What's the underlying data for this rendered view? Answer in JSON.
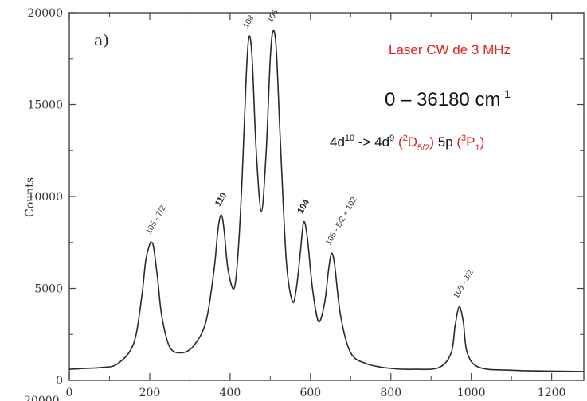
{
  "chart_data": {
    "type": "line",
    "panel_label": "a)",
    "title": "",
    "xlabel": "",
    "ylabel": "Counts",
    "xlim": [
      0,
      1280
    ],
    "ylim": [
      0,
      20000
    ],
    "x_ticks": [
      0,
      200,
      400,
      600,
      800,
      1000,
      1200
    ],
    "y_ticks": [
      0,
      5000,
      10000,
      15000,
      20000
    ],
    "grid": false,
    "series": [
      {
        "x": [
          0,
          40,
          80,
          120,
          160,
          180,
          190,
          200,
          205,
          210,
          220,
          230,
          250,
          280,
          310,
          340,
          360,
          370,
          378,
          385,
          395,
          410,
          420,
          430,
          440,
          447,
          455,
          465,
          478,
          490,
          500,
          507,
          515,
          525,
          540,
          555,
          565,
          575,
          583,
          592,
          605,
          620,
          635,
          645,
          652,
          660,
          675,
          700,
          740,
          800,
          860,
          920,
          950,
          960,
          970,
          980,
          990,
          1020,
          1100,
          1200,
          1280
        ],
        "y": [
          600,
          650,
          700,
          900,
          2000,
          4500,
          6500,
          7400,
          7500,
          7200,
          5500,
          3500,
          1800,
          1500,
          1900,
          3200,
          6000,
          8200,
          9000,
          8200,
          6000,
          5000,
          7000,
          11000,
          16500,
          18700,
          17500,
          12500,
          9200,
          12500,
          17500,
          19000,
          18000,
          13000,
          6500,
          4300,
          5000,
          7000,
          8600,
          7800,
          5000,
          3200,
          4200,
          6000,
          6900,
          6300,
          3500,
          1500,
          900,
          650,
          600,
          700,
          1500,
          3000,
          4000,
          3200,
          1500,
          700,
          550,
          500,
          480
        ]
      }
    ],
    "peak_labels": [
      {
        "text": "105 - 7/2",
        "x": 205,
        "y": 7500
      },
      {
        "text": "110",
        "x": 378,
        "y": 9000
      },
      {
        "text": "108",
        "x": 447,
        "y": 18700
      },
      {
        "text": "106",
        "x": 507,
        "y": 19000
      },
      {
        "text": "104",
        "x": 583,
        "y": 8600
      },
      {
        "text": "105 - 5/2 + 102",
        "x": 652,
        "y": 6900
      },
      {
        "text": "105 - 3/2",
        "x": 970,
        "y": 4000
      }
    ],
    "y_tick_bottom_cut": "20000"
  },
  "annotations": {
    "laser": "Laser CW de 3 MHz",
    "range_main": "0 – 36180 cm",
    "range_sup": "-1",
    "trans_a": "4d",
    "trans_a_sup": "10",
    "trans_b": " -> 4d",
    "trans_b_sup": "9",
    "trans_c_open": " (",
    "trans_c_sup": "2",
    "trans_c_main": "D",
    "trans_c_sub": "5/2",
    "trans_c_close": ")",
    "trans_d": " 5p ",
    "trans_e_open": "(",
    "trans_e_sup": "3",
    "trans_e_main": "P",
    "trans_e_sub": "1",
    "trans_e_close": ")"
  },
  "colors": {
    "accent_red": "#e0201b",
    "line": "#2a2a2a",
    "axis": "#444444"
  }
}
